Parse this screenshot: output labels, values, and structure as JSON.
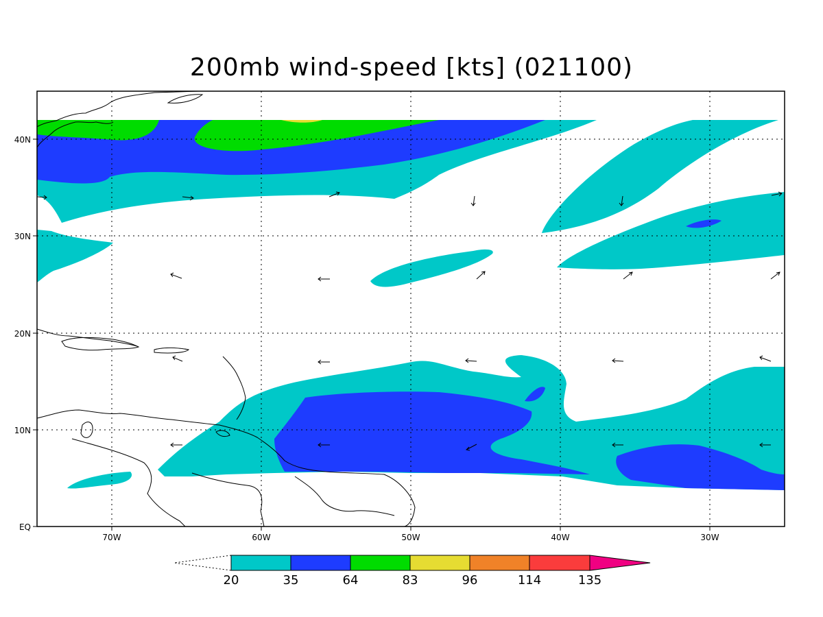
{
  "map": {
    "title": "200mb wind-speed [kts] (021100)",
    "lat_labels": [
      "40N",
      "30N",
      "20N",
      "10N",
      "EQ"
    ],
    "lon_labels": [
      "70W",
      "60W",
      "50W",
      "40W",
      "30W"
    ],
    "colorbar": {
      "levels": [
        "20",
        "35",
        "64",
        "83",
        "96",
        "114",
        "135"
      ],
      "colors": [
        "#00c8c8",
        "#1e3cff",
        "#00dc00",
        "#e6dc32",
        "#f08228",
        "#fa3c3c",
        "#f00082"
      ]
    }
  }
}
